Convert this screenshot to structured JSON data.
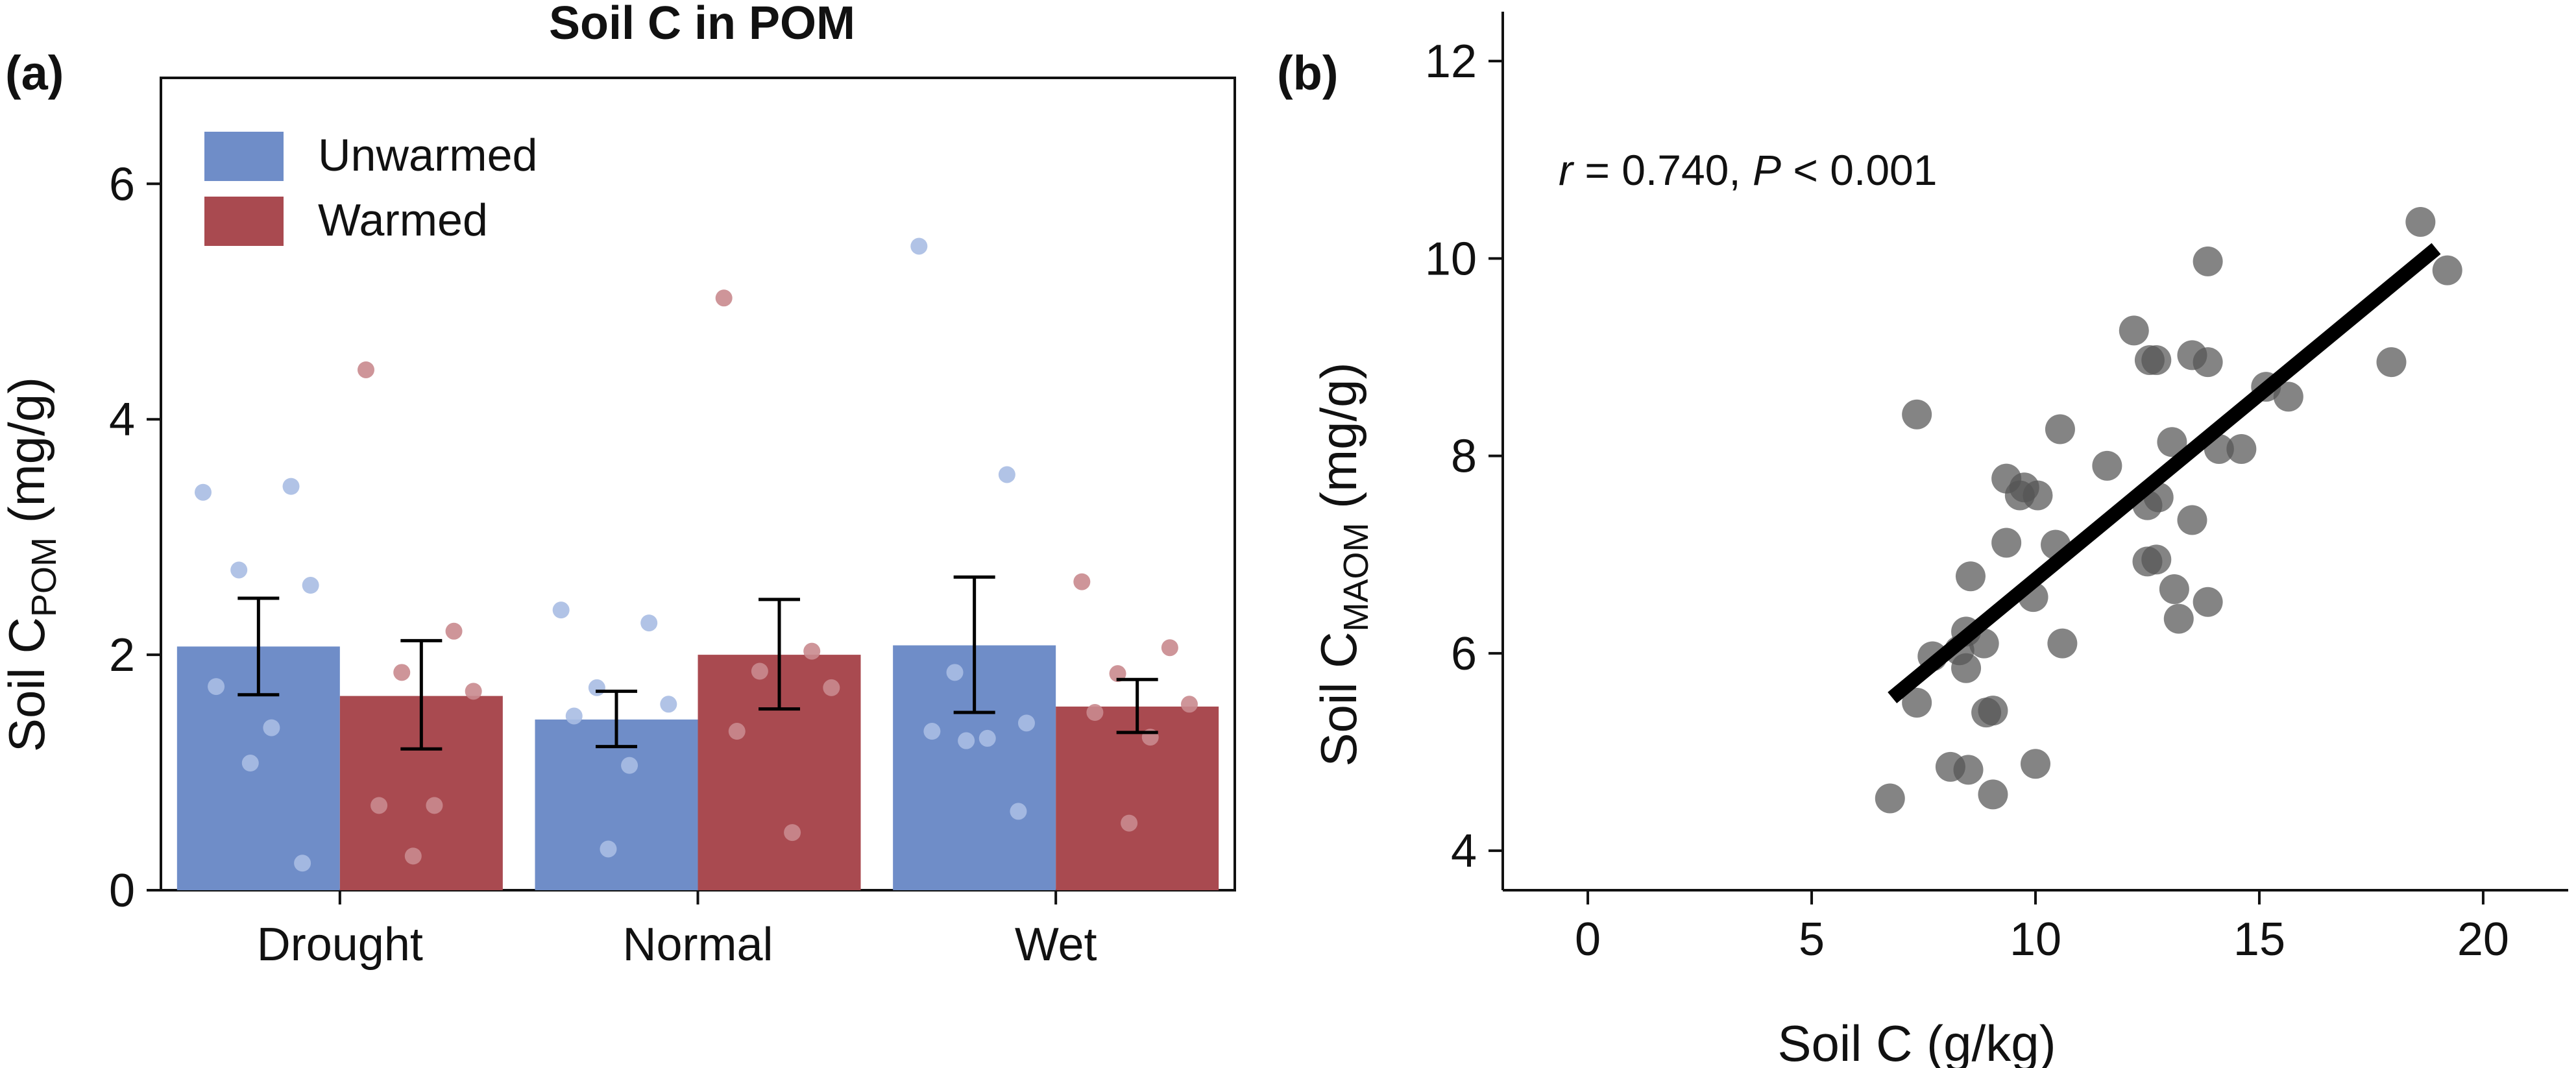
{
  "chart_data": [
    {
      "type": "bar",
      "panel_label": "(a)",
      "title": "Soil C in POM",
      "categories": [
        "Drought",
        "Normal",
        "Wet"
      ],
      "series": [
        {
          "name": "Unwarmed",
          "color": "#6F8DC8",
          "point_color": "#A9BDE3",
          "values": [
            2.07,
            1.45,
            2.08
          ],
          "err_low": [
            1.66,
            1.22,
            1.51
          ],
          "err_high": [
            2.48,
            1.69,
            2.66
          ],
          "points": [
            [
              3.38,
              3.43,
              2.72,
              2.59,
              1.73,
              1.38,
              1.08,
              0.23
            ],
            [
              2.38,
              2.27,
              1.72,
              1.58,
              1.48,
              1.06,
              0.35
            ],
            [
              5.47,
              3.53,
              1.85,
              1.42,
              1.35,
              1.29,
              1.27,
              0.67
            ]
          ]
        },
        {
          "name": "Warmed",
          "color": "#A94A50",
          "point_color": "#C98A8E",
          "values": [
            1.65,
            2.0,
            1.56
          ],
          "err_low": [
            1.2,
            1.54,
            1.34
          ],
          "err_high": [
            2.12,
            2.47,
            1.79
          ],
          "points": [
            [
              4.42,
              2.2,
              1.85,
              1.69,
              0.72,
              0.72,
              0.29
            ],
            [
              5.03,
              2.03,
              1.86,
              1.72,
              1.35,
              0.49
            ],
            [
              2.62,
              2.06,
              1.84,
              1.58,
              1.51,
              1.3,
              0.57
            ]
          ]
        }
      ],
      "xlabel": "",
      "ylabel": "Soil C",
      "ylabel_sub": "POM",
      "ylabel_unit": " (mg/g)",
      "ylim": [
        0,
        6.9
      ],
      "yticks": [
        0,
        2,
        4,
        6
      ],
      "legend": "top-left"
    },
    {
      "type": "scatter",
      "panel_label": "(b)",
      "xlabel": "Soil C (g/kg)",
      "ylabel": "Soil C",
      "ylabel_sub": "MAOM",
      "ylabel_unit": " (mg/g)",
      "xlim": [
        -1.9,
        21.9
      ],
      "ylim": [
        3.6,
        12.5
      ],
      "xticks": [
        0,
        5,
        10,
        15,
        20
      ],
      "yticks": [
        4,
        6,
        8,
        10,
        12
      ],
      "annotation": {
        "r_symbol": "r",
        "r_text": " = 0.740, ",
        "p_symbol": "P",
        "p_text": " < 0.001"
      },
      "point_color": "#555555",
      "fit_line": {
        "x": [
          6.8,
          18.95
        ],
        "y": [
          5.55,
          10.1
        ]
      },
      "points": [
        {
          "x": 6.75,
          "y": 4.53
        },
        {
          "x": 7.35,
          "y": 8.42
        },
        {
          "x": 7.35,
          "y": 5.5
        },
        {
          "x": 7.7,
          "y": 5.97
        },
        {
          "x": 8.1,
          "y": 4.85
        },
        {
          "x": 8.3,
          "y": 6.03
        },
        {
          "x": 8.45,
          "y": 6.22
        },
        {
          "x": 8.45,
          "y": 5.85
        },
        {
          "x": 8.55,
          "y": 6.78
        },
        {
          "x": 8.5,
          "y": 4.82
        },
        {
          "x": 8.85,
          "y": 6.1
        },
        {
          "x": 8.9,
          "y": 5.4
        },
        {
          "x": 9.05,
          "y": 5.42
        },
        {
          "x": 9.05,
          "y": 4.57
        },
        {
          "x": 9.35,
          "y": 7.12
        },
        {
          "x": 9.35,
          "y": 7.77
        },
        {
          "x": 9.65,
          "y": 7.6
        },
        {
          "x": 9.75,
          "y": 7.68
        },
        {
          "x": 9.95,
          "y": 6.57
        },
        {
          "x": 10.05,
          "y": 7.6
        },
        {
          "x": 10.0,
          "y": 4.88
        },
        {
          "x": 10.45,
          "y": 7.1
        },
        {
          "x": 10.55,
          "y": 8.27
        },
        {
          "x": 10.6,
          "y": 6.1
        },
        {
          "x": 11.6,
          "y": 7.9
        },
        {
          "x": 12.2,
          "y": 9.27
        },
        {
          "x": 12.5,
          "y": 7.5
        },
        {
          "x": 12.5,
          "y": 6.93
        },
        {
          "x": 12.55,
          "y": 8.97
        },
        {
          "x": 12.7,
          "y": 8.97
        },
        {
          "x": 12.7,
          "y": 6.95
        },
        {
          "x": 12.75,
          "y": 7.58
        },
        {
          "x": 13.05,
          "y": 8.14
        },
        {
          "x": 13.1,
          "y": 6.65
        },
        {
          "x": 13.2,
          "y": 6.35
        },
        {
          "x": 13.5,
          "y": 9.02
        },
        {
          "x": 13.5,
          "y": 7.35
        },
        {
          "x": 13.85,
          "y": 9.97
        },
        {
          "x": 13.85,
          "y": 8.95
        },
        {
          "x": 13.85,
          "y": 6.52
        },
        {
          "x": 14.1,
          "y": 8.07
        },
        {
          "x": 14.6,
          "y": 8.07
        },
        {
          "x": 15.15,
          "y": 8.7
        },
        {
          "x": 15.65,
          "y": 8.6
        },
        {
          "x": 17.95,
          "y": 8.95
        },
        {
          "x": 18.6,
          "y": 10.37
        },
        {
          "x": 19.2,
          "y": 9.88
        }
      ]
    }
  ]
}
